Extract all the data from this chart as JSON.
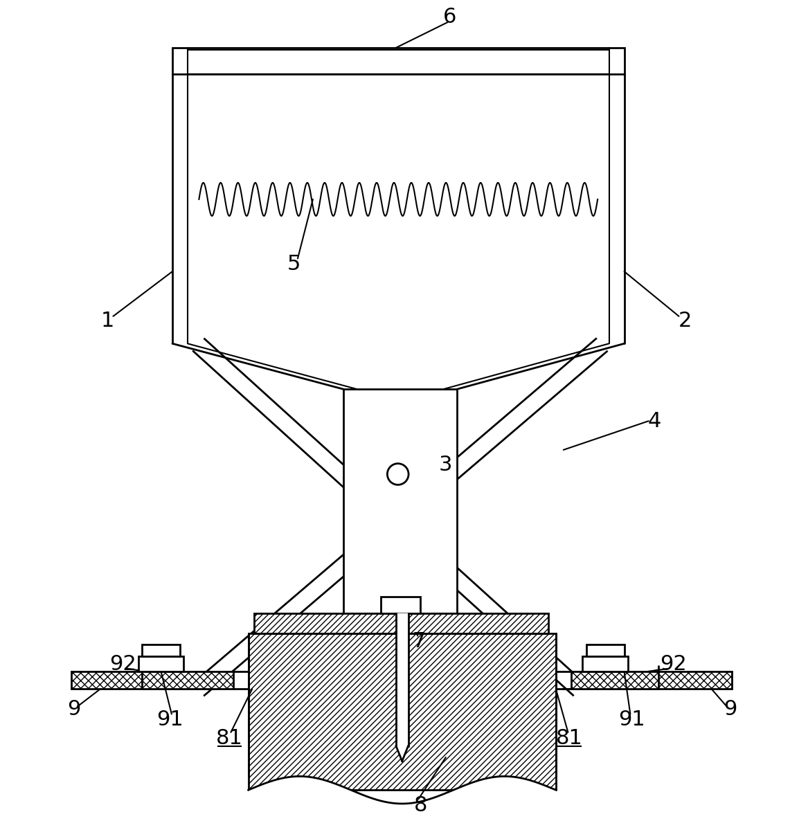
{
  "bg_color": "#ffffff",
  "line_color": "#000000",
  "figsize": [
    11.67,
    12.12
  ],
  "dpi": 100
}
